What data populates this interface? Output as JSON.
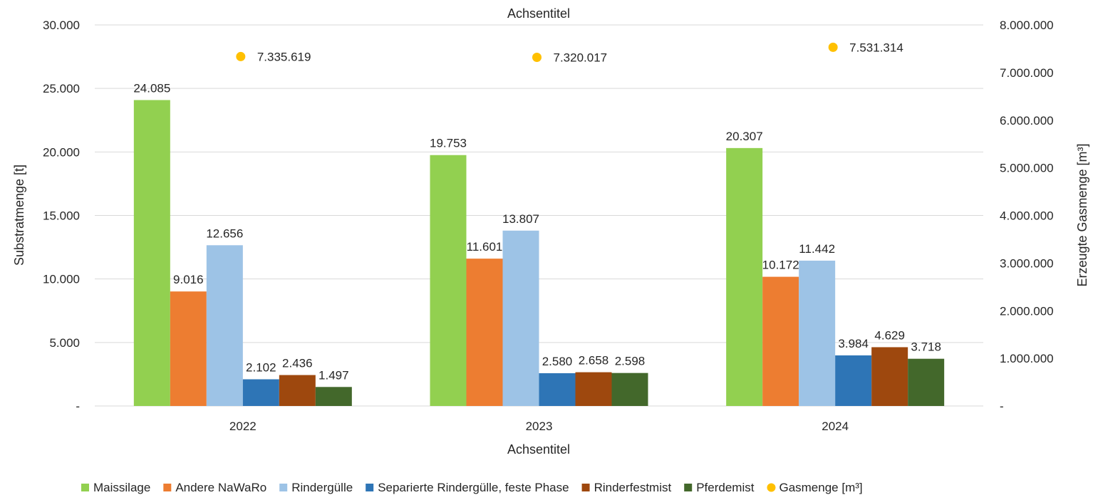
{
  "chart_data": {
    "type": "bar",
    "title_top": "Achsentitel",
    "xlabel": "Achsentitel",
    "ylabel": "Substratmenge [t]",
    "y2label": "Erzeugte Gasmenge [m³]",
    "categories": [
      "2022",
      "2023",
      "2024"
    ],
    "ylim": [
      0,
      30000
    ],
    "y2lim": [
      0,
      8000000
    ],
    "yticks": [
      "-",
      "5.000",
      "10.000",
      "15.000",
      "20.000",
      "25.000",
      "30.000"
    ],
    "y2ticks": [
      "-",
      "1.000.000",
      "2.000.000",
      "3.000.000",
      "4.000.000",
      "5.000.000",
      "6.000.000",
      "7.000.000",
      "8.000.000"
    ],
    "grid": true,
    "legend_position": "bottom",
    "series": [
      {
        "name": "Maissilage",
        "color": "#92D050",
        "values": [
          24085,
          19753,
          20307
        ],
        "labels": [
          "24.085",
          "19.753",
          "20.307"
        ]
      },
      {
        "name": "Andere NaWaRo",
        "color": "#ED7D31",
        "values": [
          9016,
          11601,
          10172
        ],
        "labels": [
          "9.016",
          "11.601",
          "10.172"
        ]
      },
      {
        "name": "Rindergülle",
        "color": "#9DC3E6",
        "values": [
          12656,
          13807,
          11442
        ],
        "labels": [
          "12.656",
          "13.807",
          "11.442"
        ]
      },
      {
        "name": "Separierte Rindergülle, feste Phase",
        "color": "#2E75B6",
        "values": [
          2102,
          2580,
          3984
        ],
        "labels": [
          "2.102",
          "2.580",
          "3.984"
        ]
      },
      {
        "name": "Rinderfestmist",
        "color": "#9E480E",
        "values": [
          2436,
          2658,
          4629
        ],
        "labels": [
          "2.436",
          "2.658",
          "4.629"
        ]
      },
      {
        "name": "Pferdemist",
        "color": "#43682B",
        "values": [
          1497,
          2598,
          3718
        ],
        "labels": [
          "1.497",
          "2.598",
          "3.718"
        ]
      }
    ],
    "secondary_series": {
      "name": "Gasmenge [m³]",
      "type": "scatter",
      "color": "#FFC000",
      "values": [
        7335619,
        7320017,
        7531314
      ],
      "labels": [
        "7.335.619",
        "7.320.017",
        "7.531.314"
      ]
    }
  }
}
